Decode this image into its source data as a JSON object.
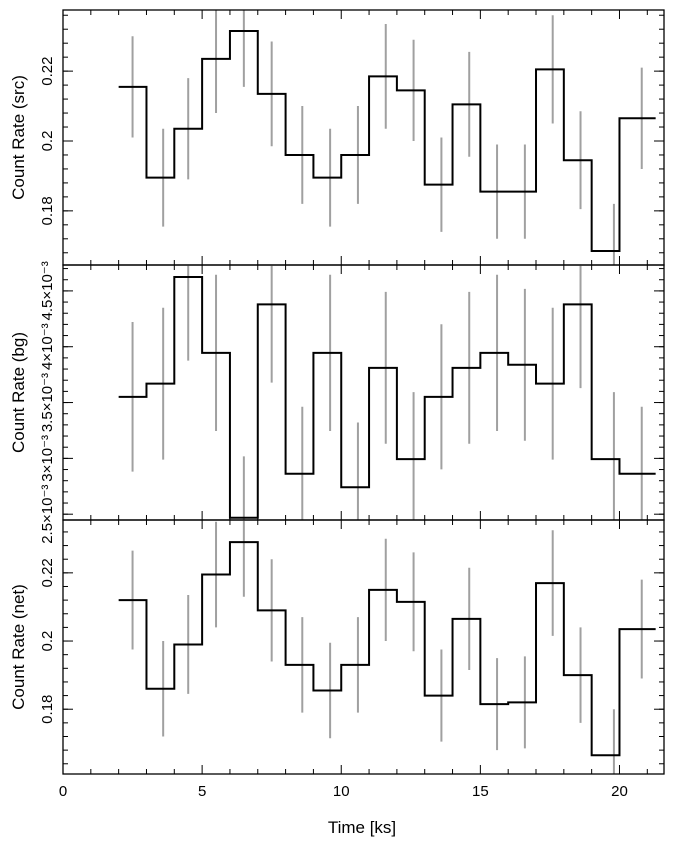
{
  "colors": {
    "step_line": "#000000",
    "error_bar": "#a0a0a0",
    "frame": "#000000",
    "background": "#ffffff"
  },
  "x_axis": {
    "label": "Time [ks]",
    "range": [
      0,
      21.6
    ],
    "ticks": [
      0,
      5,
      10,
      15,
      20
    ],
    "tick_labels": [
      "0",
      "5",
      "10",
      "15",
      "20"
    ]
  },
  "chart_data": [
    {
      "type": "line",
      "ylabel": "Count Rate (src)",
      "xlim": [
        0,
        21.6
      ],
      "ylim": [
        0.1645,
        0.2375
      ],
      "yticks": [
        0.18,
        0.2,
        0.22
      ],
      "ytick_labels": [
        "0.18",
        "0.2",
        "0.22"
      ],
      "bin_edges": [
        2,
        3,
        4,
        5,
        6,
        7,
        8,
        9,
        10,
        11,
        12,
        13,
        14,
        15,
        16,
        17,
        18,
        19,
        20,
        21.3
      ],
      "values": [
        0.2155,
        0.1895,
        0.2035,
        0.2235,
        0.2315,
        0.2135,
        0.196,
        0.1895,
        0.196,
        0.2185,
        0.2145,
        0.1875,
        0.2105,
        0.1855,
        0.1855,
        0.2205,
        0.1945,
        0.1685,
        0.2065
      ],
      "error_x": [
        2.5,
        3.6,
        4.5,
        5.5,
        6.5,
        7.5,
        8.6,
        9.6,
        10.6,
        11.6,
        12.6,
        13.6,
        14.6,
        15.6,
        16.6,
        17.6,
        18.6,
        19.8,
        20.8
      ],
      "errors": [
        0.0145,
        0.014,
        0.0145,
        0.0155,
        0.016,
        0.015,
        0.014,
        0.014,
        0.014,
        0.015,
        0.0145,
        0.0135,
        0.015,
        0.0135,
        0.0135,
        0.0155,
        0.014,
        0.0135,
        0.0145
      ]
    },
    {
      "type": "line",
      "ylabel": "Count Rate (bg)",
      "xlim": [
        0,
        21.6
      ],
      "ylim": [
        0.002448,
        0.004732
      ],
      "yticks": [
        0.0025,
        0.003,
        0.0035,
        0.004,
        0.0045
      ],
      "ytick_labels": [
        "2.5×10⁻³",
        "3×10⁻³",
        "3.5×10⁻³",
        "4×10⁻³",
        "4.5×10⁻³"
      ],
      "bin_edges": [
        2,
        3,
        4,
        5,
        6,
        7,
        8,
        9,
        10,
        11,
        12,
        13,
        14,
        15,
        16,
        17,
        18,
        19,
        20,
        21.3
      ],
      "values": [
        0.003551,
        0.003669,
        0.004625,
        0.003945,
        0.002468,
        0.004379,
        0.002862,
        0.003945,
        0.002741,
        0.003811,
        0.002993,
        0.003551,
        0.003811,
        0.003945,
        0.003838,
        0.003669,
        0.004379,
        0.002993,
        0.002862
      ],
      "error_x": [
        2.5,
        3.6,
        4.5,
        5.5,
        6.5,
        7.5,
        8.6,
        9.6,
        10.6,
        11.6,
        12.6,
        13.6,
        14.6,
        15.6,
        16.6,
        17.6,
        18.6,
        19.8,
        20.8
      ],
      "errors": [
        0.00067,
        0.00068,
        0.00075,
        0.0007,
        0.00055,
        0.0007,
        0.0006,
        0.0007,
        0.00058,
        0.00068,
        0.0006,
        0.00065,
        0.00068,
        0.0007,
        0.00068,
        0.00068,
        0.00075,
        0.0006,
        0.0006
      ]
    },
    {
      "type": "line",
      "ylabel": "Count Rate (net)",
      "xlim": [
        0,
        21.6
      ],
      "ylim": [
        0.161,
        0.2355
      ],
      "yticks": [
        0.18,
        0.2,
        0.22
      ],
      "ytick_labels": [
        "0.18",
        "0.2",
        "0.22"
      ],
      "bin_edges": [
        2,
        3,
        4,
        5,
        6,
        7,
        8,
        9,
        10,
        11,
        12,
        13,
        14,
        15,
        16,
        17,
        18,
        19,
        20,
        21.3
      ],
      "values": [
        0.212,
        0.186,
        0.199,
        0.2195,
        0.229,
        0.209,
        0.193,
        0.1855,
        0.193,
        0.215,
        0.2115,
        0.184,
        0.2065,
        0.1815,
        0.182,
        0.217,
        0.19,
        0.1665,
        0.2035
      ],
      "error_x": [
        2.5,
        3.6,
        4.5,
        5.5,
        6.5,
        7.5,
        8.6,
        9.6,
        10.6,
        11.6,
        12.6,
        13.6,
        14.6,
        15.6,
        16.6,
        17.6,
        18.6,
        19.8,
        20.8
      ],
      "errors": [
        0.0145,
        0.014,
        0.0145,
        0.0155,
        0.016,
        0.015,
        0.014,
        0.014,
        0.014,
        0.015,
        0.0145,
        0.0135,
        0.015,
        0.0135,
        0.0135,
        0.0155,
        0.014,
        0.0135,
        0.0145
      ]
    }
  ]
}
